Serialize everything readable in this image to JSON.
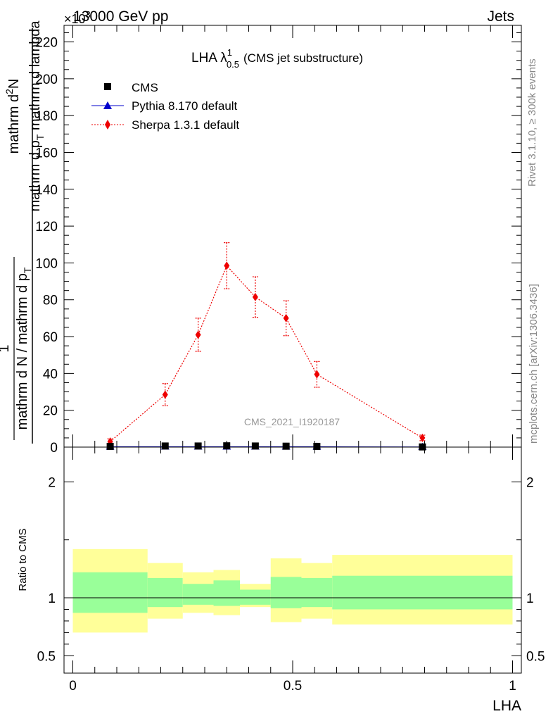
{
  "header": {
    "left": "13000 GeV pp",
    "right": "Jets",
    "exponent": "×10",
    "exponent_power": "3"
  },
  "title": {
    "main": "LHA λ",
    "sup": "1",
    "sub": "0.5",
    "suffix": "(CMS jet substructure)"
  },
  "ylabel": {
    "numerator_frac_top": "1",
    "numerator_frac_bottom": "mathrm d N / mathrm d p",
    "numerator_frac_bottom_sub": "T",
    "denominator_top": "mathrm d",
    "denominator_top_sup": "2",
    "denominator_top_rest": "N",
    "denominator_bottom": "mathrm d p",
    "denominator_bottom_sub": "T",
    "denominator_bottom_rest": " mathrm d lambda"
  },
  "ratio_ylabel": "Ratio to CMS",
  "xlabel": "LHA",
  "watermark": "CMS_2021_I1920187",
  "side_right_top": "Rivet 3.1.10, ≥ 300k events",
  "side_right_bottom": "mcplots.cern.ch [arXiv:1306.3436]",
  "colors": {
    "pythia": "#0000cc",
    "sherpa": "#ee0000",
    "band_inner": "#99ff99",
    "band_outer": "#ffff99",
    "data": "#000000"
  },
  "chart_data": {
    "type": "line",
    "title": "LHA λ^1_0.5 (CMS jet substructure)",
    "xlabel": "LHA",
    "ylabel": "1 / (mathrm d N / mathrm d p_T) mathrm d^2N / (mathrm d p_T mathrm d lambda)",
    "y_scale_factor": 1000,
    "xlim": [
      -0.02,
      1.02
    ],
    "ylim": [
      0,
      229
    ],
    "xticks": [
      0,
      0.5,
      1
    ],
    "xtick_labels": [
      "0",
      "0.5",
      "1"
    ],
    "yticks": [
      0,
      20,
      40,
      60,
      80,
      100,
      120,
      140,
      160,
      180,
      200,
      220
    ],
    "ytick_labels": [
      "0",
      "20",
      "40",
      "60",
      "80",
      "100",
      "120",
      "140",
      "160",
      "180",
      "200",
      "220"
    ],
    "legend_position": "top-left",
    "legend": [
      {
        "name": "CMS",
        "marker": "square"
      },
      {
        "name": "Pythia 8.170 default",
        "marker": "triangle"
      },
      {
        "name": "Sherpa 1.3.1 default",
        "marker": "diamond"
      }
    ],
    "bins": [
      {
        "lo": 0.0,
        "hi": 0.17
      },
      {
        "lo": 0.17,
        "hi": 0.25
      },
      {
        "lo": 0.25,
        "hi": 0.32
      },
      {
        "lo": 0.32,
        "hi": 0.38
      },
      {
        "lo": 0.38,
        "hi": 0.45
      },
      {
        "lo": 0.45,
        "hi": 0.52
      },
      {
        "lo": 0.52,
        "hi": 0.59
      },
      {
        "lo": 0.59,
        "hi": 1.0
      }
    ],
    "series": [
      {
        "name": "CMS",
        "x": [
          0.085,
          0.21,
          0.285,
          0.35,
          0.415,
          0.485,
          0.555,
          0.795
        ],
        "y": [
          0.4,
          0.6,
          0.6,
          0.7,
          0.6,
          0.5,
          0.4,
          0.1
        ]
      },
      {
        "name": "Pythia 8.170 default",
        "x": [
          0.085,
          0.21,
          0.285,
          0.35,
          0.415,
          0.485,
          0.555,
          0.795
        ],
        "y": [
          0.2,
          0.2,
          0.2,
          0.2,
          0.2,
          0.2,
          0.2,
          0.1
        ]
      },
      {
        "name": "Sherpa 1.3.1 default",
        "x": [
          0.085,
          0.21,
          0.285,
          0.35,
          0.415,
          0.485,
          0.555,
          0.795
        ],
        "y": [
          3.0,
          28.5,
          61.0,
          98.5,
          81.5,
          70.0,
          39.5,
          5.0
        ],
        "yerr": [
          1.5,
          6.0,
          9.0,
          12.5,
          11.0,
          9.5,
          7.0,
          1.5
        ]
      }
    ],
    "ratio": {
      "ylabel": "Ratio to CMS",
      "ylim": [
        0.35,
        2.3
      ],
      "yticks": [
        0.5,
        1,
        2
      ],
      "ytick_labels": [
        "0.5",
        "1",
        "2"
      ],
      "reference": 1.0,
      "inner_band": [
        [
          0.87,
          1.22
        ],
        [
          0.92,
          1.17
        ],
        [
          0.94,
          1.12
        ],
        [
          0.93,
          1.15
        ],
        [
          0.94,
          1.07
        ],
        [
          0.91,
          1.18
        ],
        [
          0.92,
          1.17
        ],
        [
          0.9,
          1.19
        ]
      ],
      "outer_band": [
        [
          0.7,
          1.42
        ],
        [
          0.82,
          1.3
        ],
        [
          0.87,
          1.22
        ],
        [
          0.85,
          1.24
        ],
        [
          0.92,
          1.12
        ],
        [
          0.79,
          1.34
        ],
        [
          0.82,
          1.3
        ],
        [
          0.77,
          1.37
        ]
      ]
    }
  }
}
